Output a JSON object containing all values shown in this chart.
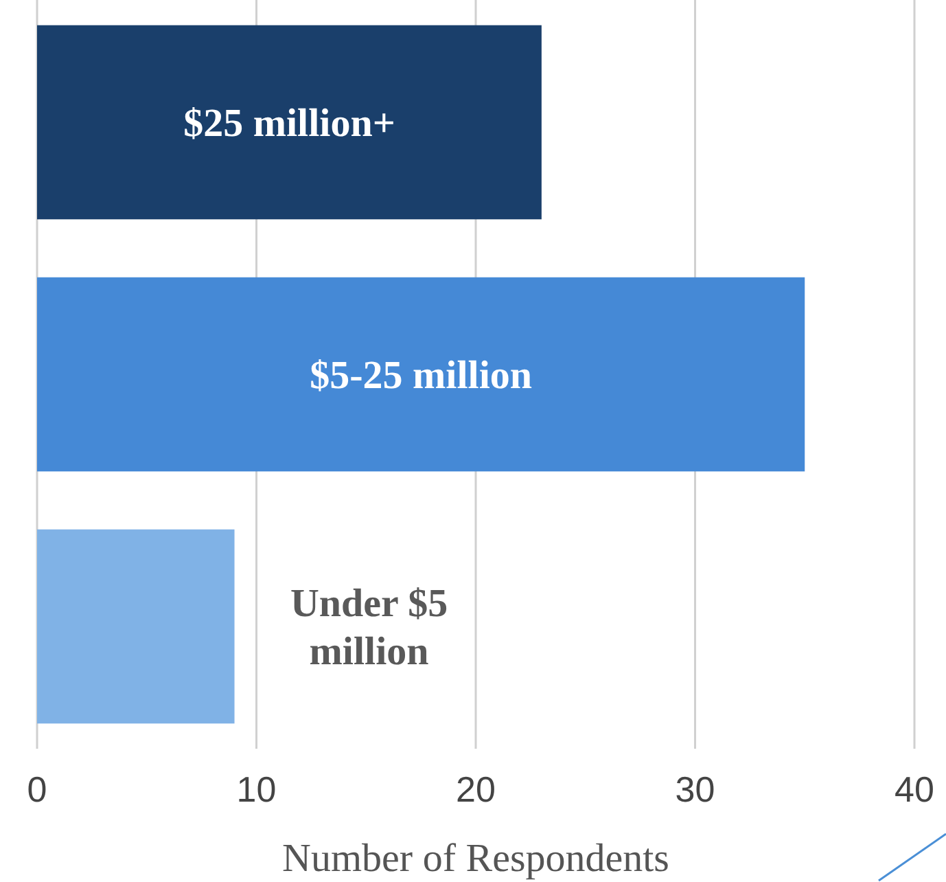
{
  "chart_data": {
    "type": "bar",
    "orientation": "horizontal",
    "xlabel": "Number of Respondents",
    "categories": [
      "$25 million+",
      "$5-25 million",
      "Under $5 million"
    ],
    "values": [
      23,
      35,
      9
    ],
    "colors": [
      "#1a3f6b",
      "#4589d6",
      "#80b2e6"
    ],
    "xlim": [
      0,
      40
    ],
    "xticks": [
      0,
      10,
      20,
      30,
      40
    ],
    "grid": "x",
    "tick_labels": "x"
  }
}
